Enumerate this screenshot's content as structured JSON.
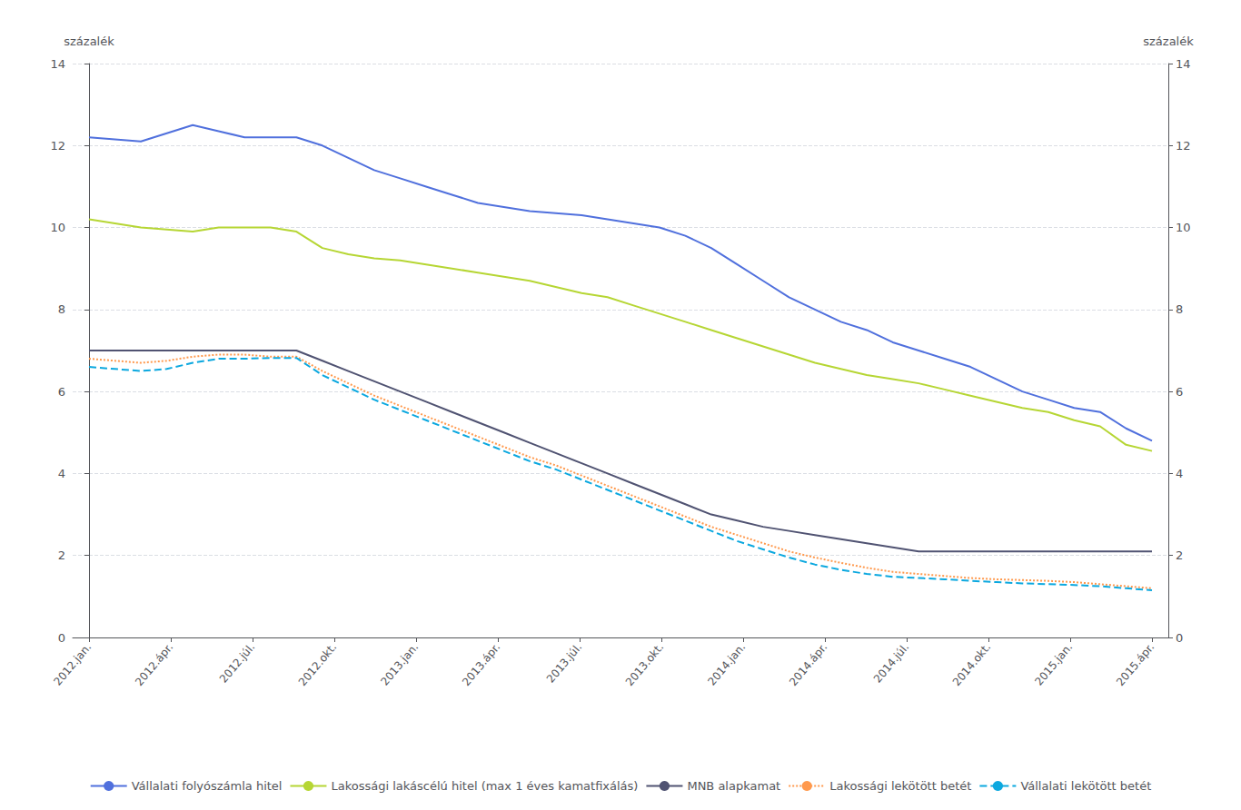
{
  "chart_data": {
    "type": "line",
    "ylabel": "százalék",
    "y2label": "százalék",
    "x": [
      0,
      0.3170731707,
      0.6341463415,
      0.9512195122,
      1.2682926829,
      1.5853658537,
      1.9024390244,
      2.2195121951,
      2.5365853659,
      2.8536585366,
      3.1707317073,
      3.487804878,
      3.8048780488,
      4.1219512195,
      4.4390243902,
      4.756097561,
      5.0731707317,
      5.3902439024,
      5.7073170732,
      6.0243902439,
      6.3414634146,
      6.6585365854,
      6.9756097561,
      7.2926829268,
      7.6097560976,
      7.9268292683,
      8.243902439,
      8.5609756098,
      8.8780487805,
      9.1951219512,
      9.512195122,
      9.8292682927,
      10.1463414634,
      10.4634146341,
      10.7804878049,
      11.0975609756,
      11.4146341463,
      11.7317073171,
      12.0487804878,
      12.3658536585,
      12.6829268293,
      13
    ],
    "xlim": [
      -0.2,
      13.2
    ],
    "xticks": [
      {
        "value": 0,
        "label": "2012.jan."
      },
      {
        "value": 1,
        "label": "2012.ápr."
      },
      {
        "value": 2,
        "label": "2012.júl."
      },
      {
        "value": 3,
        "label": "2012.okt."
      },
      {
        "value": 4,
        "label": "2013.jan."
      },
      {
        "value": 5,
        "label": "2013.ápr."
      },
      {
        "value": 6,
        "label": "2013.júl."
      },
      {
        "value": 7,
        "label": "2013.okt."
      },
      {
        "value": 8,
        "label": "2014.jan."
      },
      {
        "value": 9,
        "label": "2014.ápr."
      },
      {
        "value": 10,
        "label": "2014.júl."
      },
      {
        "value": 11,
        "label": "2014.okt."
      },
      {
        "value": 12,
        "label": "2015.jan."
      },
      {
        "value": 13,
        "label": "2015.ápr."
      }
    ],
    "ylim": [
      0,
      14
    ],
    "yticks": [
      0,
      2,
      4,
      6,
      8,
      10,
      12,
      14
    ],
    "y2lim": [
      0,
      14
    ],
    "y2ticks": [
      0,
      2,
      4,
      6,
      8,
      10,
      12,
      14
    ],
    "grid": true,
    "legend": "bottom",
    "series": [
      {
        "name": "Vállalati folyószámla hitel",
        "line_style": "solid",
        "values": [
          12.2,
          12.15,
          12.1,
          12.3,
          12.5,
          12.35,
          12.2,
          12.2,
          12.2,
          12.0,
          11.7,
          11.4,
          11.2,
          11.0,
          10.8,
          10.6,
          10.5,
          10.4,
          10.35,
          10.3,
          10.2,
          10.1,
          10.0,
          9.8,
          9.5,
          9.1,
          8.7,
          8.3,
          8.0,
          7.7,
          7.5,
          7.2,
          7.0,
          6.8,
          6.6,
          6.3,
          6.0,
          5.8,
          5.6,
          5.5,
          5.1,
          4.8
        ]
      },
      {
        "name": "Lakossági lakáscélú hitel (max 1 éves kamatfixálás)",
        "line_style": "solid",
        "values": [
          10.2,
          10.1,
          10.0,
          9.95,
          9.9,
          10.0,
          10.0,
          10.0,
          9.9,
          9.5,
          9.35,
          9.25,
          9.2,
          9.1,
          9.0,
          8.9,
          8.8,
          8.7,
          8.55,
          8.4,
          8.3,
          8.1,
          7.9,
          7.7,
          7.5,
          7.3,
          7.1,
          6.9,
          6.7,
          6.55,
          6.4,
          6.3,
          6.2,
          6.05,
          5.9,
          5.75,
          5.6,
          5.5,
          5.3,
          5.15,
          4.7,
          4.55
        ]
      },
      {
        "name": "MNB alapkamat",
        "line_style": "solid",
        "values": [
          7.0,
          7.0,
          7.0,
          7.0,
          7.0,
          7.0,
          7.0,
          7.0,
          7.0,
          6.75,
          6.5,
          6.25,
          6.0,
          5.75,
          5.5,
          5.25,
          5.0,
          4.75,
          4.5,
          4.25,
          4.0,
          3.75,
          3.5,
          3.25,
          3.0,
          2.85,
          2.7,
          2.6,
          2.5,
          2.4,
          2.3,
          2.2,
          2.1,
          2.1,
          2.1,
          2.1,
          2.1,
          2.1,
          2.1,
          2.1,
          2.1,
          2.1
        ]
      },
      {
        "name": "Lakossági lekötött betét",
        "line_style": "dotted",
        "values": [
          6.8,
          6.75,
          6.7,
          6.75,
          6.85,
          6.9,
          6.9,
          6.85,
          6.85,
          6.5,
          6.2,
          5.9,
          5.65,
          5.4,
          5.15,
          4.9,
          4.65,
          4.4,
          4.2,
          3.95,
          3.7,
          3.45,
          3.2,
          2.95,
          2.7,
          2.5,
          2.3,
          2.1,
          1.95,
          1.82,
          1.7,
          1.6,
          1.55,
          1.5,
          1.45,
          1.42,
          1.4,
          1.38,
          1.35,
          1.3,
          1.25,
          1.2
        ]
      },
      {
        "name": "Vállalati lekötött betét",
        "line_style": "dashed",
        "values": [
          6.6,
          6.55,
          6.5,
          6.55,
          6.7,
          6.8,
          6.8,
          6.82,
          6.82,
          6.4,
          6.1,
          5.8,
          5.55,
          5.3,
          5.05,
          4.8,
          4.55,
          4.3,
          4.1,
          3.85,
          3.6,
          3.35,
          3.1,
          2.85,
          2.6,
          2.35,
          2.15,
          1.95,
          1.78,
          1.65,
          1.55,
          1.48,
          1.45,
          1.42,
          1.38,
          1.35,
          1.32,
          1.3,
          1.28,
          1.25,
          1.2,
          1.15
        ]
      }
    ]
  }
}
